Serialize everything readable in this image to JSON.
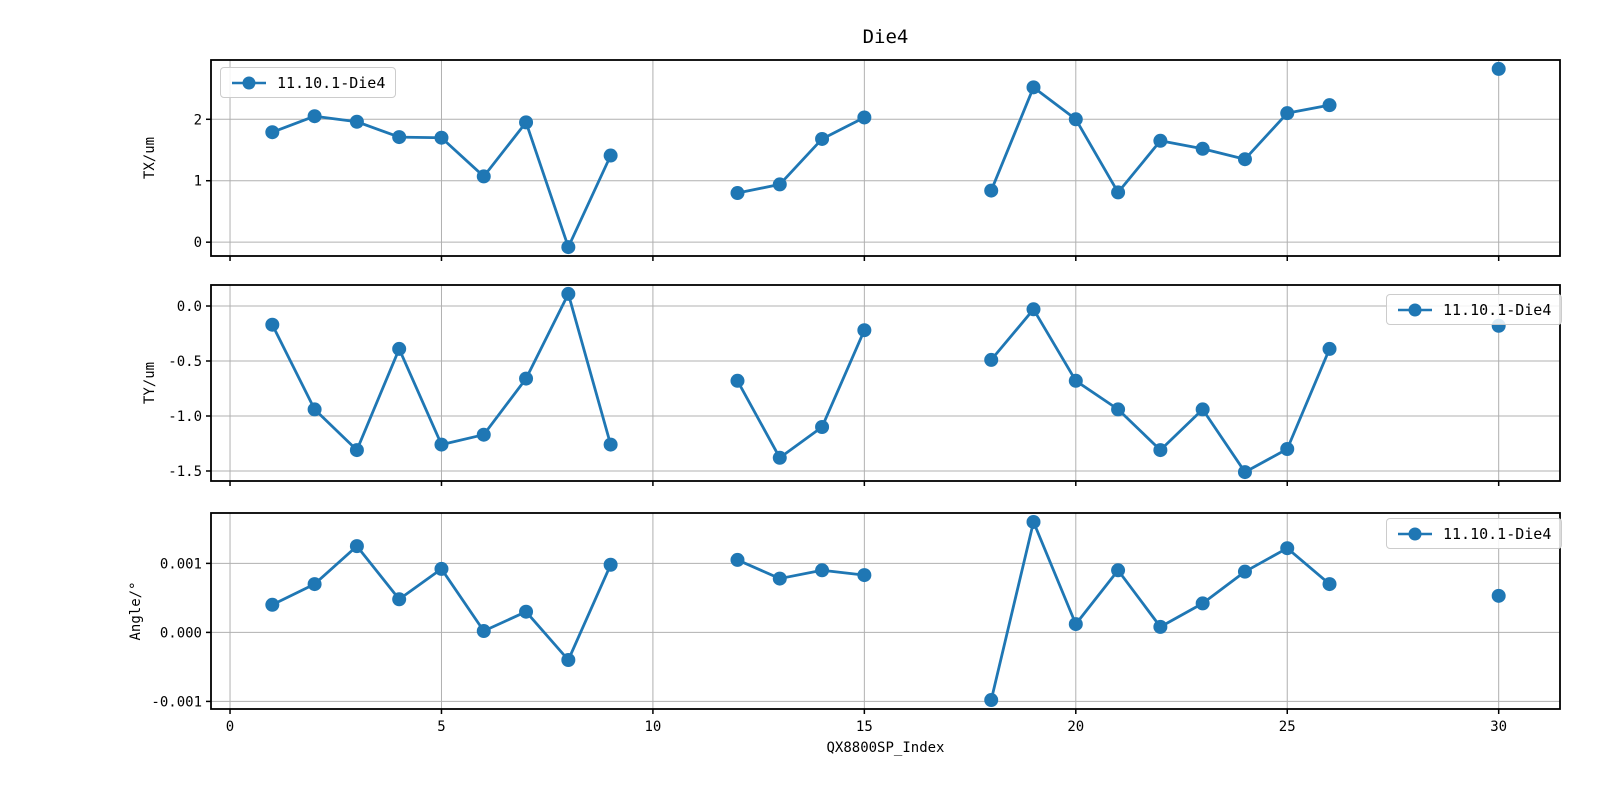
{
  "figure": {
    "title": "Die4",
    "xlabel": "QX8800SP_Index",
    "series_label": "11.10.1-Die4",
    "line_color": "#1f77b4",
    "grid_color": "#b0b0b0",
    "spine_color": "#000000",
    "background": "#ffffff"
  },
  "chart_data": [
    {
      "id": "tx",
      "type": "line",
      "ylabel": "TX/um",
      "x": [
        1,
        2,
        3,
        4,
        5,
        6,
        7,
        8,
        9,
        12,
        13,
        14,
        15,
        18,
        19,
        20,
        21,
        22,
        23,
        24,
        25,
        26,
        30
      ],
      "y": [
        1.79,
        2.05,
        1.96,
        1.71,
        1.7,
        1.07,
        1.95,
        -0.08,
        1.41,
        0.8,
        0.94,
        1.68,
        2.03,
        0.84,
        2.52,
        2.0,
        0.81,
        1.65,
        1.52,
        1.35,
        2.1,
        2.23,
        2.82
      ],
      "xlim": [
        -0.45,
        31.45
      ],
      "ylim": [
        -0.225,
        2.965
      ],
      "xticks": [
        0,
        5,
        10,
        15,
        20,
        25,
        30
      ],
      "xtick_labels": [
        "0",
        "5",
        "10",
        "15",
        "20",
        "25",
        "30"
      ],
      "yticks": [
        0,
        1,
        2
      ],
      "ytick_labels": [
        "0",
        "1",
        "2"
      ],
      "grid": true,
      "show_xtick_labels": false,
      "line_breaks_after_x": [
        9,
        15,
        26
      ],
      "legend": {
        "label": "11.10.1-Die4",
        "position": "upper-left"
      }
    },
    {
      "id": "ty",
      "type": "line",
      "ylabel": "TY/um",
      "x": [
        1,
        2,
        3,
        4,
        5,
        6,
        7,
        8,
        9,
        12,
        13,
        14,
        15,
        18,
        19,
        20,
        21,
        22,
        23,
        24,
        25,
        26,
        30
      ],
      "y": [
        -0.17,
        -0.94,
        -1.31,
        -0.39,
        -1.26,
        -1.17,
        -0.66,
        0.11,
        -1.26,
        -0.68,
        -1.38,
        -1.1,
        -0.22,
        -0.49,
        -0.03,
        -0.68,
        -0.94,
        -1.31,
        -0.94,
        -1.51,
        -1.3,
        -0.39,
        -0.18
      ],
      "xlim": [
        -0.45,
        31.45
      ],
      "ylim": [
        -1.591,
        0.191
      ],
      "xticks": [
        0,
        5,
        10,
        15,
        20,
        25,
        30
      ],
      "xtick_labels": [
        "0",
        "5",
        "10",
        "15",
        "20",
        "25",
        "30"
      ],
      "yticks": [
        0.0,
        -0.5,
        -1.0,
        -1.5
      ],
      "ytick_labels": [
        "0.0",
        "-0.5",
        "-1.0",
        "-1.5"
      ],
      "grid": true,
      "show_xtick_labels": false,
      "line_breaks_after_x": [
        9,
        15,
        26
      ],
      "legend": {
        "label": "11.10.1-Die4",
        "position": "upper-right"
      }
    },
    {
      "id": "angle",
      "type": "line",
      "ylabel": "Angle/°",
      "x": [
        1,
        2,
        3,
        4,
        5,
        6,
        7,
        8,
        9,
        12,
        13,
        14,
        15,
        18,
        19,
        20,
        21,
        22,
        23,
        24,
        25,
        26,
        30
      ],
      "y": [
        0.0004,
        0.0007,
        0.00125,
        0.00048,
        0.00092,
        2e-05,
        0.0003,
        -0.0004,
        0.00098,
        0.00105,
        0.00078,
        0.0009,
        0.00083,
        -0.00098,
        0.0016,
        0.00012,
        0.0009,
        8e-05,
        0.00042,
        0.00088,
        0.00122,
        0.0007,
        0.00053
      ],
      "xlim": [
        -0.45,
        31.45
      ],
      "ylim": [
        -0.00111,
        0.00173
      ],
      "xticks": [
        0,
        5,
        10,
        15,
        20,
        25,
        30
      ],
      "xtick_labels": [
        "0",
        "5",
        "10",
        "15",
        "20",
        "25",
        "30"
      ],
      "yticks": [
        0.001,
        0.0,
        -0.001
      ],
      "ytick_labels": [
        "0.001",
        "0.000",
        "-0.001"
      ],
      "grid": true,
      "show_xtick_labels": true,
      "line_breaks_after_x": [
        9,
        15,
        26
      ],
      "legend": {
        "label": "11.10.1-Die4",
        "position": "upper-right"
      }
    }
  ]
}
